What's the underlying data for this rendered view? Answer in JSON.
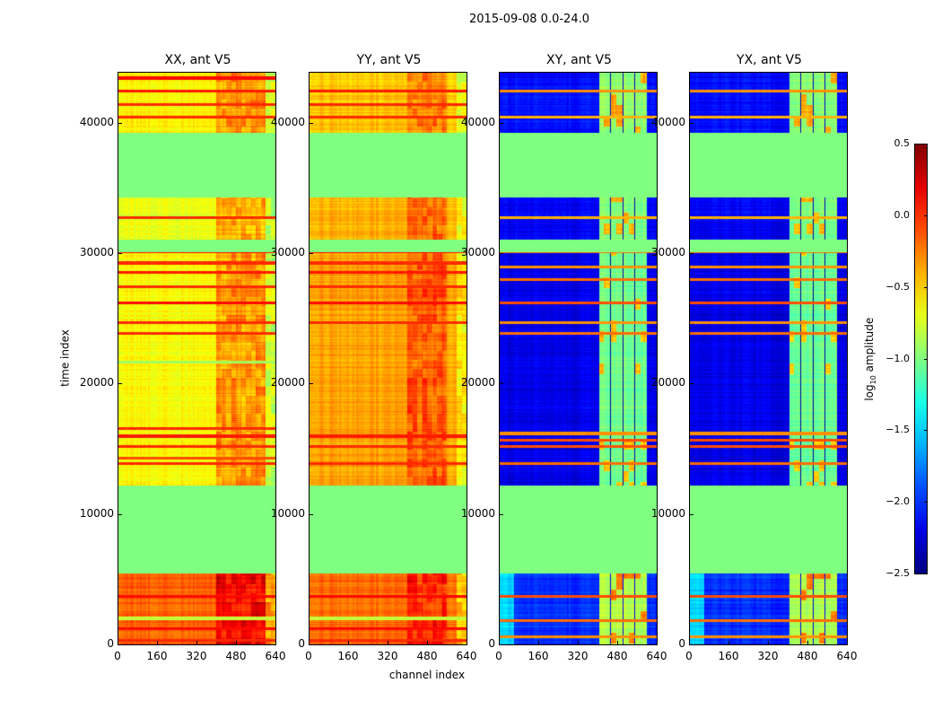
{
  "figure": {
    "title": "2015-09-08 0.0-24.0"
  },
  "chart_data": {
    "type": "heatmap",
    "title": "2015-09-08 0.0-24.0",
    "xlabel": "channel index",
    "ylabel": "time index",
    "xlim": [
      0,
      640
    ],
    "ylim": [
      0,
      43920
    ],
    "xticks": [
      "0",
      "160",
      "320",
      "480",
      "640"
    ],
    "yticks": [
      "0",
      "10000",
      "20000",
      "30000",
      "40000"
    ],
    "colorbar": {
      "label_main": "log",
      "label_sub": "10",
      "label_rest": " amplitude",
      "range": [
        -2.5,
        0.5
      ],
      "ticks": [
        "0.5",
        "0.0",
        "−0.5",
        "−1.0",
        "−1.5",
        "−2.0",
        "−2.5"
      ],
      "colormap": "jet"
    },
    "flagged_value": -1.0,
    "panels": [
      {
        "title": "XX, ant V5",
        "segments": [
          [
            0,
            5430,
            -0.15
          ],
          [
            12230,
            30100,
            -0.62
          ],
          [
            31070,
            34360,
            -0.68
          ],
          [
            39300,
            43920,
            -0.6
          ]
        ],
        "channel_offsets": [
          [
            400,
            600,
            0.3
          ],
          [
            600,
            640,
            -0.15
          ]
        ],
        "stripes": [
          [
            300,
            0.0
          ],
          [
            1200,
            0.1
          ],
          [
            2000,
            -0.8
          ],
          [
            3700,
            0.1
          ],
          [
            13900,
            0.0
          ],
          [
            14300,
            -0.1
          ],
          [
            15200,
            0.0
          ],
          [
            16000,
            0.05
          ],
          [
            16600,
            0.0
          ],
          [
            21700,
            -0.9
          ],
          [
            23900,
            0.0
          ],
          [
            24700,
            0.0
          ],
          [
            26250,
            0.1
          ],
          [
            27500,
            0.0
          ],
          [
            28600,
            0.05
          ],
          [
            29300,
            0.0
          ],
          [
            30200,
            0.1
          ],
          [
            32800,
            0.0
          ],
          [
            40500,
            0.0
          ],
          [
            41500,
            0.0
          ],
          [
            42500,
            0.05
          ],
          [
            43500,
            0.1
          ]
        ],
        "ylabels": true
      },
      {
        "title": "YY, ant V5",
        "segments": [
          [
            0,
            5430,
            -0.18
          ],
          [
            12230,
            30100,
            -0.35
          ],
          [
            31070,
            34360,
            -0.4
          ],
          [
            39300,
            43920,
            -0.45
          ]
        ],
        "channel_offsets": [
          [
            400,
            560,
            0.2
          ],
          [
            600,
            640,
            -0.25
          ]
        ],
        "stripes": [
          [
            300,
            0.0
          ],
          [
            1200,
            0.1
          ],
          [
            2000,
            -0.8
          ],
          [
            3700,
            0.1
          ],
          [
            13900,
            0.0
          ],
          [
            15200,
            0.0
          ],
          [
            16000,
            0.05
          ],
          [
            24700,
            0.0
          ],
          [
            26250,
            0.1
          ],
          [
            27500,
            0.0
          ],
          [
            28600,
            0.05
          ],
          [
            29300,
            0.0
          ],
          [
            30200,
            0.1
          ],
          [
            40500,
            0.0
          ],
          [
            41500,
            0.0
          ],
          [
            42500,
            0.05
          ]
        ],
        "ylabels": true
      },
      {
        "title": "XY, ant V5",
        "segments": [
          [
            0,
            5430,
            -2.0
          ],
          [
            12230,
            30100,
            -2.2
          ],
          [
            31070,
            34360,
            -2.15
          ],
          [
            39300,
            43920,
            -2.1
          ]
        ],
        "channel_offsets": [
          [
            405,
            600,
            1.15
          ]
        ],
        "stripes": [
          [
            600,
            -0.3
          ],
          [
            1800,
            -0.2
          ],
          [
            3700,
            -0.1
          ],
          [
            13900,
            -0.2
          ],
          [
            15200,
            -0.1
          ],
          [
            15700,
            -0.1
          ],
          [
            16200,
            -0.3
          ],
          [
            23900,
            -0.2
          ],
          [
            24700,
            -0.3
          ],
          [
            26250,
            -0.1
          ],
          [
            28000,
            -0.2
          ],
          [
            29000,
            -0.3
          ],
          [
            30200,
            -0.2
          ],
          [
            32800,
            -0.4
          ],
          [
            40500,
            -0.4
          ],
          [
            42500,
            -0.3
          ]
        ],
        "ylabels": true
      },
      {
        "title": "YX, ant V5",
        "segments": [
          [
            0,
            5430,
            -2.0
          ],
          [
            12230,
            30100,
            -2.2
          ],
          [
            31070,
            34360,
            -2.15
          ],
          [
            39300,
            43920,
            -2.1
          ]
        ],
        "channel_offsets": [
          [
            405,
            600,
            1.15
          ]
        ],
        "stripes": [
          [
            600,
            -0.3
          ],
          [
            1800,
            -0.2
          ],
          [
            3700,
            -0.1
          ],
          [
            13900,
            -0.2
          ],
          [
            15200,
            -0.1
          ],
          [
            15700,
            -0.1
          ],
          [
            16200,
            -0.3
          ],
          [
            23900,
            -0.2
          ],
          [
            24700,
            -0.3
          ],
          [
            26250,
            -0.1
          ],
          [
            28000,
            -0.2
          ],
          [
            29000,
            -0.3
          ],
          [
            30200,
            -0.2
          ],
          [
            32800,
            -0.4
          ],
          [
            40500,
            -0.4
          ],
          [
            42500,
            -0.3
          ]
        ],
        "ylabels": true
      }
    ]
  }
}
